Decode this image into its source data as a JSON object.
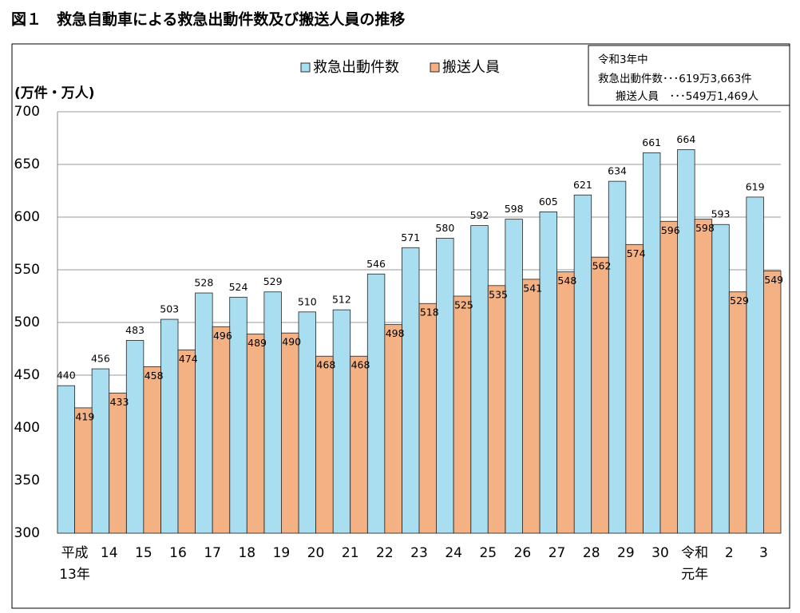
{
  "chart_data": {
    "type": "bar",
    "title": "図１　救急自動車による救急出動件数及び搬送人員の推移",
    "y_label": "(万件・万人)",
    "annotation": [
      "令和3年中",
      "救急出動件数･･･619万3,663件",
      "搬送人員　･･･549万1,469人"
    ],
    "categories": [
      "平成\n13年",
      "14",
      "15",
      "16",
      "17",
      "18",
      "19",
      "20",
      "21",
      "22",
      "23",
      "24",
      "25",
      "26",
      "27",
      "28",
      "29",
      "30",
      "令和\n元年",
      "2",
      "3"
    ],
    "series": [
      {
        "name": "救急出動件数",
        "color": "#a9def0",
        "values": [
          440,
          456,
          483,
          503,
          528,
          524,
          529,
          510,
          512,
          546,
          571,
          580,
          592,
          598,
          605,
          621,
          634,
          661,
          664,
          593,
          619
        ]
      },
      {
        "name": "搬送人員",
        "color": "#f4b183",
        "values": [
          419,
          433,
          458,
          474,
          496,
          489,
          490,
          468,
          468,
          498,
          518,
          525,
          535,
          541,
          548,
          562,
          574,
          596,
          598,
          529,
          549
        ]
      }
    ],
    "ylim": [
      300,
      700
    ],
    "yticks": [
      300,
      350,
      400,
      450,
      500,
      550,
      600,
      650,
      700
    ],
    "grid": true
  }
}
